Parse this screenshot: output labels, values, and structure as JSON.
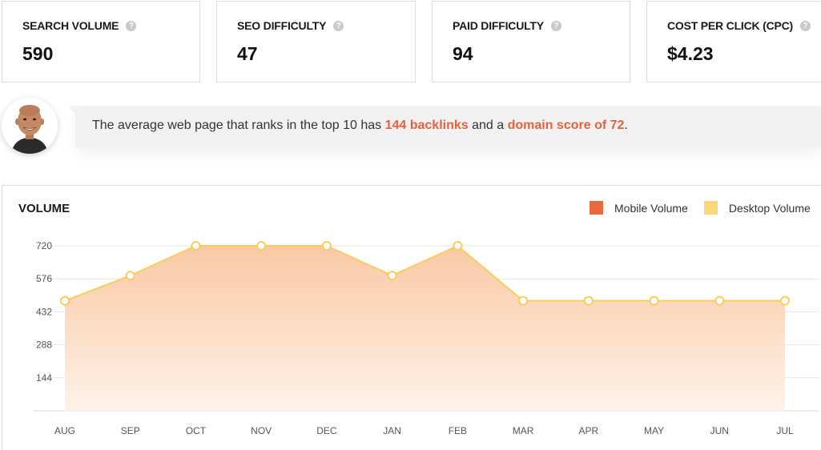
{
  "metrics": [
    {
      "label": "SEARCH VOLUME",
      "value": "590"
    },
    {
      "label": "SEO DIFFICULTY",
      "value": "47"
    },
    {
      "label": "PAID DIFFICULTY",
      "value": "94"
    },
    {
      "label": "COST PER CLICK (CPC)",
      "value": "$4.23"
    }
  ],
  "advice": {
    "prefix": "The average web page that ranks in the top 10 has ",
    "backlinks": "144 backlinks",
    "middle": " and a ",
    "domain_score": "domain score of 72",
    "suffix": "."
  },
  "colors": {
    "accent": "#e8613a",
    "mobile": "#e8693d",
    "desktop": "#fdd678",
    "line": "#fccb5e",
    "fill_top": "#f9c9a4",
    "fill_bottom": "#fff2e8"
  },
  "icons": {
    "help": "question-circle-icon",
    "avatar": "user-avatar-photo"
  },
  "volume_panel": {
    "title": "VOLUME",
    "legend": [
      {
        "name": "Mobile Volume",
        "color": "#e8693d"
      },
      {
        "name": "Desktop Volume",
        "color": "#fdd678"
      }
    ]
  },
  "chart_data": {
    "type": "area",
    "title": "VOLUME",
    "categories": [
      "AUG",
      "SEP",
      "OCT",
      "NOV",
      "DEC",
      "JAN",
      "FEB",
      "MAR",
      "APR",
      "MAY",
      "JUN",
      "JUL"
    ],
    "y_ticks": [
      "144",
      "288",
      "432",
      "576",
      "720"
    ],
    "ylim": [
      0,
      720
    ],
    "grid": true,
    "legend_position": "top-right",
    "series": [
      {
        "name": "Desktop Volume",
        "values": [
          480,
          590,
          720,
          720,
          720,
          590,
          720,
          480,
          480,
          480,
          480,
          480
        ]
      }
    ]
  }
}
